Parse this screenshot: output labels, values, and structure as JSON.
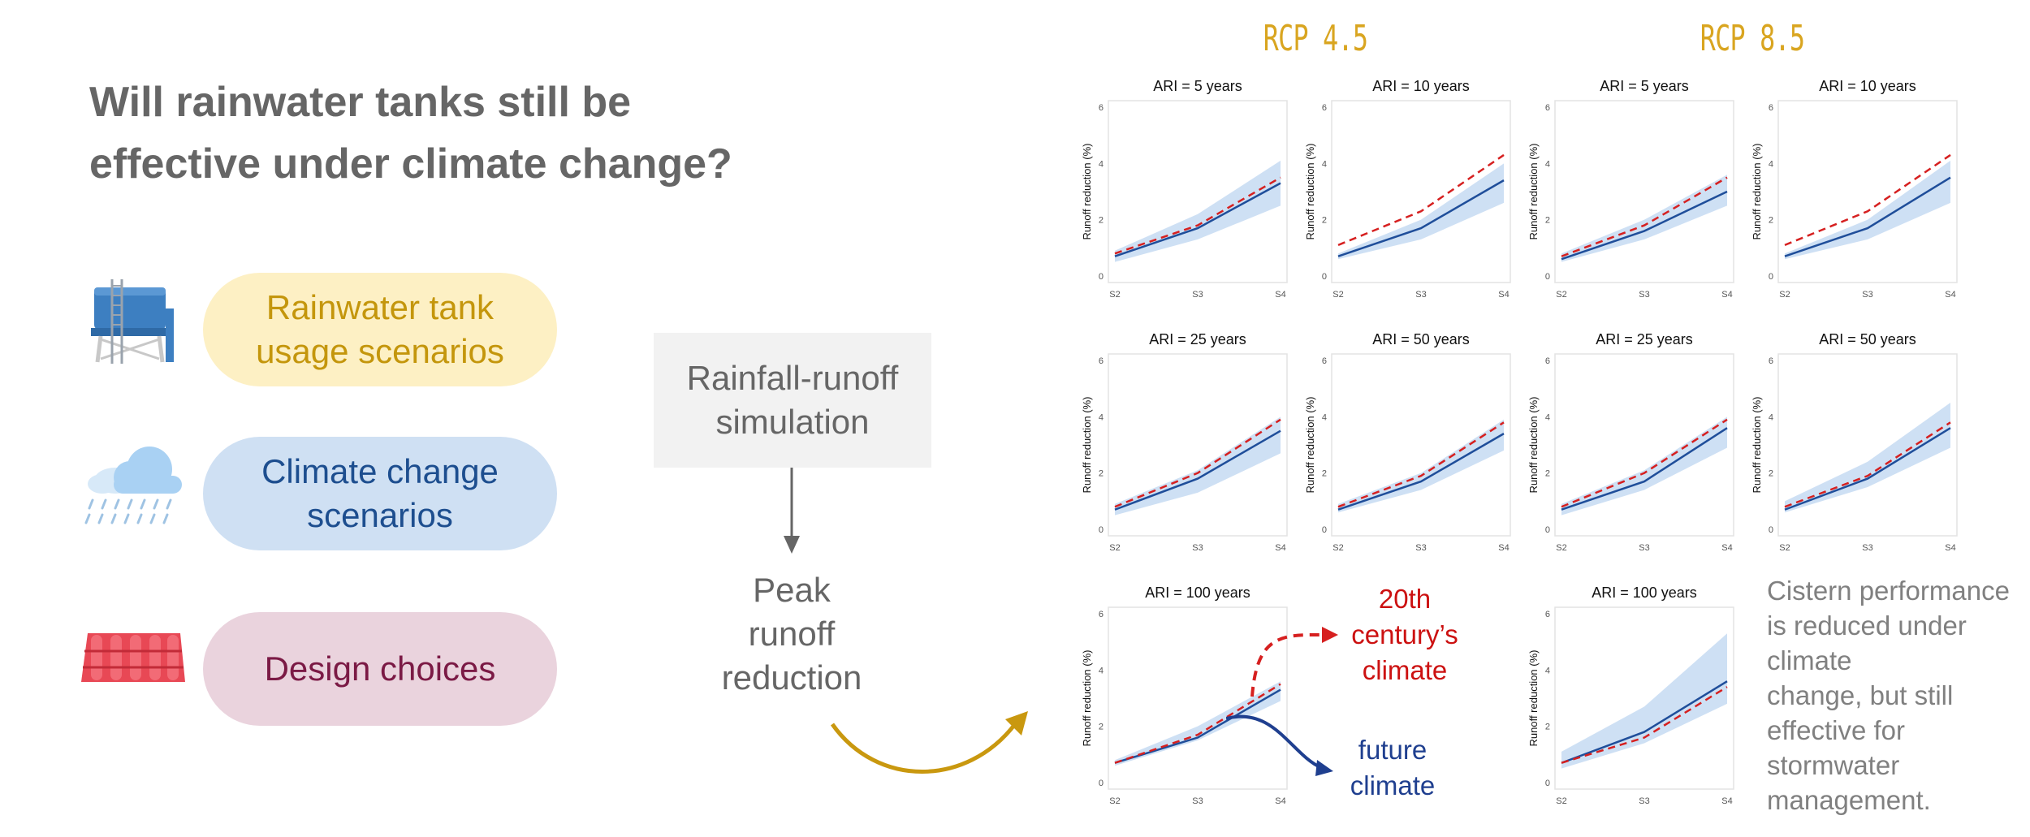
{
  "title_line1": "Will rainwater tanks still be",
  "title_line2": "effective under climate change?",
  "pills": [
    {
      "line1": "Rainwater tank",
      "line2": "usage scenarios",
      "icon": "water-tank-icon",
      "bg": "#fdf0c4",
      "color": "#c4960c"
    },
    {
      "line1": "Climate change",
      "line2": "scenarios",
      "icon": "rain-cloud-icon",
      "bg": "#cfe0f3",
      "color": "#1d4e8f"
    },
    {
      "line1": "Design choices",
      "line2": "",
      "icon": "roof-tiles-icon",
      "bg": "#ead3dd",
      "color": "#7b1a45"
    }
  ],
  "sim_line1": "Rainfall-runoff",
  "sim_line2": "simulation",
  "peak_lines": [
    "Peak",
    "runoff",
    "reduction"
  ],
  "rcp_labels": [
    "RCP 4.5",
    "RCP 8.5"
  ],
  "annotation_red": [
    "20th",
    "century’s",
    "climate"
  ],
  "annotation_blue": [
    "future",
    "climate"
  ],
  "caption": [
    "Cistern performance",
    "is reduced under",
    "climate",
    "change, but still",
    "effective for",
    "stormwater",
    "management."
  ],
  "colors": {
    "historical": "#d62020",
    "future": "#1f4e9a",
    "band": "#c5daf2",
    "accent_arrow": "#c9980f"
  },
  "chart_data": [
    {
      "type": "line",
      "title": "ARI = 5 years",
      "group": "RCP 4.5",
      "x": [
        "S2",
        "S3",
        "S4"
      ],
      "ylabel": "Runoff reduction (%)",
      "ylim": [
        0,
        6
      ],
      "yticks": [
        0,
        2,
        4,
        6
      ],
      "series": [
        {
          "values": [
            0.7,
            1.7,
            3.3
          ]
        },
        {
          "values": [
            0.8,
            1.8,
            3.5
          ]
        }
      ],
      "band_low": [
        0.5,
        1.3,
        2.5
      ],
      "band_high": [
        0.9,
        2.2,
        4.1
      ]
    },
    {
      "type": "line",
      "title": "ARI = 10 years",
      "group": "RCP 4.5",
      "x": [
        "S2",
        "S3",
        "S4"
      ],
      "ylabel": "Runoff reduction (%)",
      "ylim": [
        0,
        6
      ],
      "yticks": [
        0,
        2,
        4,
        6
      ],
      "series": [
        {
          "values": [
            0.7,
            1.7,
            3.4
          ]
        },
        {
          "values": [
            1.1,
            2.3,
            4.3
          ]
        }
      ],
      "band_low": [
        0.6,
        1.3,
        2.6
      ],
      "band_high": [
        0.8,
        2.0,
        4.0
      ]
    },
    {
      "type": "line",
      "title": "ARI = 5 years",
      "group": "RCP 8.5",
      "x": [
        "S2",
        "S3",
        "S4"
      ],
      "ylabel": "Runoff reduction (%)",
      "ylim": [
        0,
        6
      ],
      "yticks": [
        0,
        2,
        4,
        6
      ],
      "series": [
        {
          "values": [
            0.6,
            1.6,
            3.0
          ]
        },
        {
          "values": [
            0.7,
            1.8,
            3.5
          ]
        }
      ],
      "band_low": [
        0.5,
        1.3,
        2.5
      ],
      "band_high": [
        0.8,
        2.0,
        3.6
      ]
    },
    {
      "type": "line",
      "title": "ARI = 10 years",
      "group": "RCP 8.5",
      "x": [
        "S2",
        "S3",
        "S4"
      ],
      "ylabel": "Runoff reduction (%)",
      "ylim": [
        0,
        6
      ],
      "yticks": [
        0,
        2,
        4,
        6
      ],
      "series": [
        {
          "values": [
            0.7,
            1.7,
            3.5
          ]
        },
        {
          "values": [
            1.1,
            2.3,
            4.3
          ]
        }
      ],
      "band_low": [
        0.6,
        1.3,
        2.6
      ],
      "band_high": [
        0.8,
        2.0,
        4.1
      ]
    },
    {
      "type": "line",
      "title": "ARI = 25 years",
      "group": "RCP 4.5",
      "x": [
        "S2",
        "S3",
        "S4"
      ],
      "ylabel": "Runoff reduction (%)",
      "ylim": [
        0,
        6
      ],
      "yticks": [
        0,
        2,
        4,
        6
      ],
      "series": [
        {
          "values": [
            0.7,
            1.8,
            3.5
          ]
        },
        {
          "values": [
            0.8,
            2.0,
            3.9
          ]
        }
      ],
      "band_low": [
        0.5,
        1.3,
        2.7
      ],
      "band_high": [
        0.9,
        2.1,
        4.0
      ]
    },
    {
      "type": "line",
      "title": "ARI = 50 years",
      "group": "RCP 4.5",
      "x": [
        "S2",
        "S3",
        "S4"
      ],
      "ylabel": "Runoff reduction (%)",
      "ylim": [
        0,
        6
      ],
      "yticks": [
        0,
        2,
        4,
        6
      ],
      "series": [
        {
          "values": [
            0.7,
            1.7,
            3.4
          ]
        },
        {
          "values": [
            0.8,
            1.9,
            3.8
          ]
        }
      ],
      "band_low": [
        0.6,
        1.4,
        2.8
      ],
      "band_high": [
        0.9,
        2.0,
        3.9
      ]
    },
    {
      "type": "line",
      "title": "ARI = 25 years",
      "group": "RCP 8.5",
      "x": [
        "S2",
        "S3",
        "S4"
      ],
      "ylabel": "Runoff reduction (%)",
      "ylim": [
        0,
        6
      ],
      "yticks": [
        0,
        2,
        4,
        6
      ],
      "series": [
        {
          "values": [
            0.7,
            1.7,
            3.6
          ]
        },
        {
          "values": [
            0.8,
            2.0,
            3.9
          ]
        }
      ],
      "band_low": [
        0.5,
        1.4,
        2.9
      ],
      "band_high": [
        0.9,
        2.1,
        4.0
      ]
    },
    {
      "type": "line",
      "title": "ARI = 50 years",
      "group": "RCP 8.5",
      "x": [
        "S2",
        "S3",
        "S4"
      ],
      "ylabel": "Runoff reduction (%)",
      "ylim": [
        0,
        6
      ],
      "yticks": [
        0,
        2,
        4,
        6
      ],
      "series": [
        {
          "values": [
            0.7,
            1.8,
            3.6
          ]
        },
        {
          "values": [
            0.8,
            1.9,
            3.8
          ]
        }
      ],
      "band_low": [
        0.6,
        1.5,
        2.9
      ],
      "band_high": [
        1.0,
        2.4,
        4.5
      ]
    },
    {
      "type": "line",
      "title": "ARI = 100 years",
      "group": "RCP 4.5",
      "x": [
        "S2",
        "S3",
        "S4"
      ],
      "ylabel": "Runoff reduction (%)",
      "ylim": [
        0,
        6
      ],
      "yticks": [
        0,
        2,
        4,
        6
      ],
      "series": [
        {
          "values": [
            0.7,
            1.6,
            3.3
          ]
        },
        {
          "values": [
            0.7,
            1.7,
            3.5
          ]
        }
      ],
      "band_low": [
        0.6,
        1.5,
        2.9
      ],
      "band_high": [
        0.8,
        2.0,
        3.6
      ]
    },
    {
      "type": "line",
      "title": "ARI = 100 years",
      "group": "RCP 8.5",
      "x": [
        "S2",
        "S3",
        "S4"
      ],
      "ylabel": "Runoff reduction (%)",
      "ylim": [
        0,
        6
      ],
      "yticks": [
        0,
        2,
        4,
        6
      ],
      "series": [
        {
          "values": [
            0.7,
            1.8,
            3.6
          ]
        },
        {
          "values": [
            0.7,
            1.6,
            3.4
          ]
        }
      ],
      "band_low": [
        0.5,
        1.4,
        2.8
      ],
      "band_high": [
        1.1,
        2.7,
        5.3
      ]
    }
  ]
}
